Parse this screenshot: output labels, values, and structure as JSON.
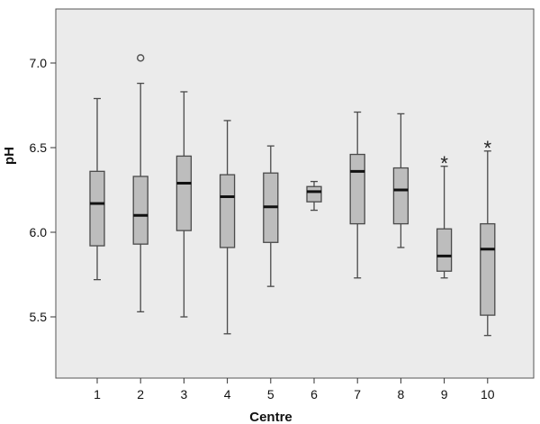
{
  "chart_data": {
    "type": "box",
    "xlabel": "Centre",
    "ylabel": "pH",
    "ylim": [
      5.15,
      7.35
    ],
    "yticks": [
      "5.5",
      "6.0",
      "6.5",
      "7.0"
    ],
    "grid": false,
    "categories": [
      "1",
      "2",
      "3",
      "4",
      "5",
      "6",
      "7",
      "8",
      "9",
      "10"
    ],
    "boxes": [
      {
        "category": "1",
        "min": 5.72,
        "q1": 5.92,
        "median": 6.17,
        "q3": 6.36,
        "max": 6.79
      },
      {
        "category": "2",
        "min": 5.53,
        "q1": 5.93,
        "median": 6.1,
        "q3": 6.33,
        "max": 6.88
      },
      {
        "category": "3",
        "min": 5.5,
        "q1": 6.01,
        "median": 6.29,
        "q3": 6.45,
        "max": 6.83
      },
      {
        "category": "4",
        "min": 5.4,
        "q1": 5.91,
        "median": 6.21,
        "q3": 6.34,
        "max": 6.66
      },
      {
        "category": "5",
        "min": 5.68,
        "q1": 5.94,
        "median": 6.15,
        "q3": 6.35,
        "max": 6.51
      },
      {
        "category": "6",
        "min": 6.13,
        "q1": 6.18,
        "median": 6.24,
        "q3": 6.27,
        "max": 6.3
      },
      {
        "category": "7",
        "min": 5.73,
        "q1": 6.05,
        "median": 6.36,
        "q3": 6.46,
        "max": 6.71
      },
      {
        "category": "8",
        "min": 5.91,
        "q1": 6.05,
        "median": 6.25,
        "q3": 6.38,
        "max": 6.7
      },
      {
        "category": "9",
        "min": 5.73,
        "q1": 5.77,
        "median": 5.86,
        "q3": 6.02,
        "max": 6.39
      },
      {
        "category": "10",
        "min": 5.39,
        "q1": 5.51,
        "median": 5.9,
        "q3": 6.05,
        "max": 6.48
      }
    ],
    "outliers": [
      {
        "category": "2",
        "value": 7.03,
        "marker": "circle"
      },
      {
        "category": "9",
        "value": 6.42,
        "marker": "asterisk"
      },
      {
        "category": "10",
        "value": 6.51,
        "marker": "asterisk"
      }
    ],
    "colors": {
      "plot_background": "#ebebeb",
      "box_fill": "#bdbdbd",
      "stroke": "#4a4a4a",
      "median": "#111111",
      "page_background": "#ffffff"
    }
  }
}
